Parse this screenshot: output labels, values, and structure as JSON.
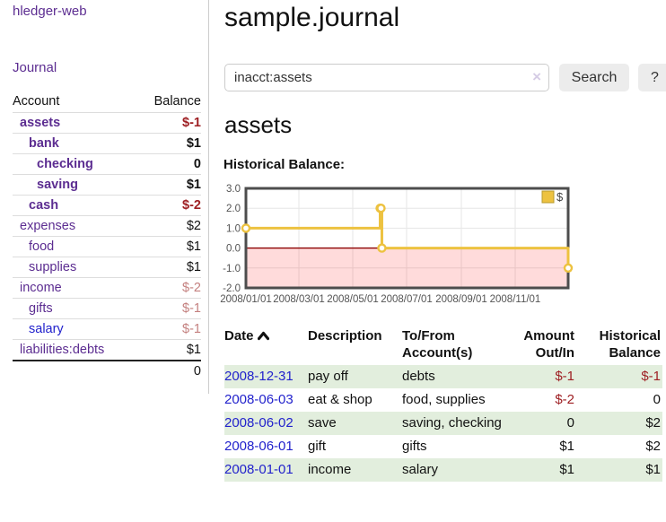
{
  "sidebar": {
    "brand": "hledger-web",
    "journal_link": "Journal",
    "accounts": {
      "header_account": "Account",
      "header_balance": "Balance",
      "rows": [
        {
          "name": "assets",
          "balance": "$-1",
          "indent": 1,
          "bold": true,
          "blue": false
        },
        {
          "name": "bank",
          "balance": "$1",
          "indent": 2,
          "bold": true,
          "blue": false
        },
        {
          "name": "checking",
          "balance": "0",
          "indent": 3,
          "bold": true,
          "blue": false
        },
        {
          "name": "saving",
          "balance": "$1",
          "indent": 3,
          "bold": true,
          "blue": false
        },
        {
          "name": "cash",
          "balance": "$-2",
          "indent": 2,
          "bold": true,
          "blue": false
        },
        {
          "name": "expenses",
          "balance": "$2",
          "indent": 1,
          "bold": false,
          "blue": false
        },
        {
          "name": "food",
          "balance": "$1",
          "indent": 2,
          "bold": false,
          "blue": false
        },
        {
          "name": "supplies",
          "balance": "$1",
          "indent": 2,
          "bold": false,
          "blue": false
        },
        {
          "name": "income",
          "balance": "$-2",
          "indent": 1,
          "bold": false,
          "blue": false
        },
        {
          "name": "gifts",
          "balance": "$-1",
          "indent": 2,
          "bold": false,
          "blue": false
        },
        {
          "name": "salary",
          "balance": "$-1",
          "indent": 2,
          "bold": false,
          "blue": true
        },
        {
          "name": "liabilities:debts",
          "balance": "$1",
          "indent": 1,
          "bold": false,
          "blue": false
        }
      ],
      "total": "0"
    }
  },
  "main": {
    "title": "sample.journal",
    "search": {
      "value": "inacct:assets",
      "clear": "×",
      "search_button": "Search",
      "help_button": "?"
    },
    "account_heading": "assets",
    "chart_title": "Historical Balance:"
  },
  "chart_data": {
    "type": "line",
    "step": true,
    "title": "Historical Balance",
    "legend": [
      {
        "label": "$",
        "color": "#edc240"
      }
    ],
    "legend_position": "top-right",
    "grid": true,
    "ylim": [
      -2.0,
      3.0
    ],
    "yticks": [
      3.0,
      2.0,
      1.0,
      0.0,
      -1.0,
      -2.0
    ],
    "ytick_labels": [
      "3.0",
      "2.0",
      "1.0",
      "0.0",
      "-1.0",
      "-2.0"
    ],
    "xrange": [
      "2008-01-01",
      "2008-12-31"
    ],
    "xticks": [
      "2008-01-01",
      "2008-03-01",
      "2008-05-01",
      "2008-07-01",
      "2008-09-01",
      "2008-11-01"
    ],
    "xtick_labels": [
      "2008/01/01",
      "2008/03/01",
      "2008/05/01",
      "2008/07/01",
      "2008/09/01",
      "2008/11/01"
    ],
    "series": [
      {
        "name": "$",
        "color": "#edc240",
        "points": [
          [
            "2008-01-01",
            1
          ],
          [
            "2008-06-01",
            2
          ],
          [
            "2008-06-02",
            2
          ],
          [
            "2008-06-03",
            0
          ],
          [
            "2008-12-31",
            -1
          ]
        ]
      }
    ],
    "negative_region_fill": "rgba(255,0,0,0.14)",
    "zero_line_color": "#8b0000",
    "frame_color": "#4d4d4d",
    "gridline_color": "#e6e6e6",
    "tick_label_color": "#545454"
  },
  "register": {
    "headers": {
      "date": "Date",
      "description": "Description",
      "tofrom_line1": "To/From",
      "tofrom_line2": "Account(s)",
      "amount_line1": "Amount",
      "amount_line2": "Out/In",
      "balance_line1": "Historical",
      "balance_line2": "Balance"
    },
    "rows": [
      {
        "date": "2008-12-31",
        "description": "pay off",
        "accounts": "debts",
        "amount": "$-1",
        "balance": "$-1"
      },
      {
        "date": "2008-06-03",
        "description": "eat & shop",
        "accounts": "food, supplies",
        "amount": "$-2",
        "balance": "0"
      },
      {
        "date": "2008-06-02",
        "description": "save",
        "accounts": "saving, checking",
        "amount": "0",
        "balance": "$2"
      },
      {
        "date": "2008-06-01",
        "description": "gift",
        "accounts": "gifts",
        "amount": "$1",
        "balance": "$2"
      },
      {
        "date": "2008-01-01",
        "description": "income",
        "accounts": "salary",
        "amount": "$1",
        "balance": "$1"
      }
    ]
  },
  "colors": {
    "link_purple": "#5c2d91",
    "link_blue": "#2222cc",
    "negative_strong": "#9e1f23",
    "negative_muted": "#c4807f",
    "row_stripe_green": "#e2eedd",
    "series_gold": "#edc240",
    "button_gray": "#ececec"
  }
}
